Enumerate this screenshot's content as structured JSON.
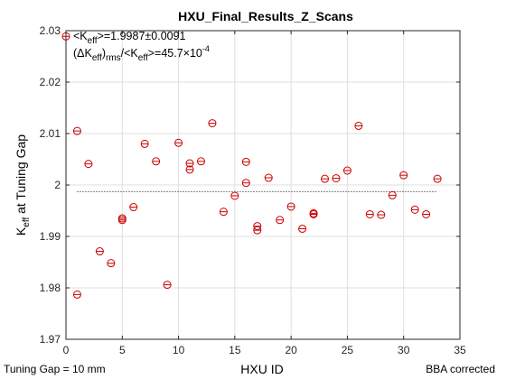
{
  "chart_data": {
    "type": "scatter",
    "title": "HXU_Final_Results_Z_Scans",
    "xlabel": "HXU ID",
    "ylabel": {
      "main": "K",
      "sub": "eff",
      "rest": " at Tuning Gap"
    },
    "xlim": [
      0,
      35
    ],
    "ylim": [
      1.97,
      2.03
    ],
    "xticks": [
      0,
      5,
      10,
      15,
      20,
      25,
      30,
      35
    ],
    "yticks": [
      1.97,
      1.98,
      1.99,
      2.0,
      2.01,
      2.02,
      2.03
    ],
    "xtick_labels": [
      "0",
      "5",
      "10",
      "15",
      "20",
      "25",
      "30",
      "35"
    ],
    "ytick_labels": [
      "1.97",
      "1.98",
      "1.99",
      "2",
      "2.01",
      "2.02",
      "2.03"
    ],
    "grid": true,
    "marker": "circle-with-horizontal-line",
    "marker_color": "#cc0000",
    "mean_line": {
      "y": 1.9987,
      "x_range": [
        1,
        33
      ],
      "style": "dotted",
      "color": "#000000"
    },
    "annotation": {
      "line1": {
        "open": "<K",
        "sub": "eff",
        "close": ">=1.9987±0.0091"
      },
      "line2": {
        "paren_open": "(",
        "delta": "Δ",
        "k": "K",
        "k_sub": "eff",
        "paren_close": ")",
        "rms_sub": "rms",
        "slash": "/<K",
        "k2_sub": "eff",
        "eq": ">=45.7×10",
        "exp": "-4"
      }
    },
    "points": [
      [
        0,
        2.0289
      ],
      [
        1,
        2.0105
      ],
      [
        1,
        1.9787
      ],
      [
        2,
        2.0041
      ],
      [
        3,
        1.9871
      ],
      [
        4,
        1.9848
      ],
      [
        5,
        1.9935
      ],
      [
        5,
        1.9932
      ],
      [
        6,
        1.9957
      ],
      [
        7,
        2.008
      ],
      [
        8,
        2.0046
      ],
      [
        9,
        1.9806
      ],
      [
        10,
        2.0082
      ],
      [
        11,
        2.0042
      ],
      [
        11,
        2.003
      ],
      [
        12,
        2.0046
      ],
      [
        13,
        2.012
      ],
      [
        14,
        1.9948
      ],
      [
        15,
        1.9979
      ],
      [
        16,
        2.0045
      ],
      [
        16,
        2.0004
      ],
      [
        17,
        1.992
      ],
      [
        17,
        1.9912
      ],
      [
        18,
        2.0014
      ],
      [
        19,
        1.9932
      ],
      [
        20,
        1.9958
      ],
      [
        21,
        1.9915
      ],
      [
        22,
        1.9945
      ],
      [
        22,
        1.9943
      ],
      [
        23,
        2.0012
      ],
      [
        24,
        2.0013
      ],
      [
        25,
        2.0028
      ],
      [
        26,
        2.0115
      ],
      [
        27,
        1.9943
      ],
      [
        28,
        1.9942
      ],
      [
        29,
        1.998
      ],
      [
        30,
        2.0019
      ],
      [
        31,
        1.9952
      ],
      [
        32,
        1.9943
      ],
      [
        33,
        2.0012
      ]
    ]
  },
  "footer": {
    "left": "Tuning Gap = 10 mm",
    "right": "BBA corrected"
  }
}
